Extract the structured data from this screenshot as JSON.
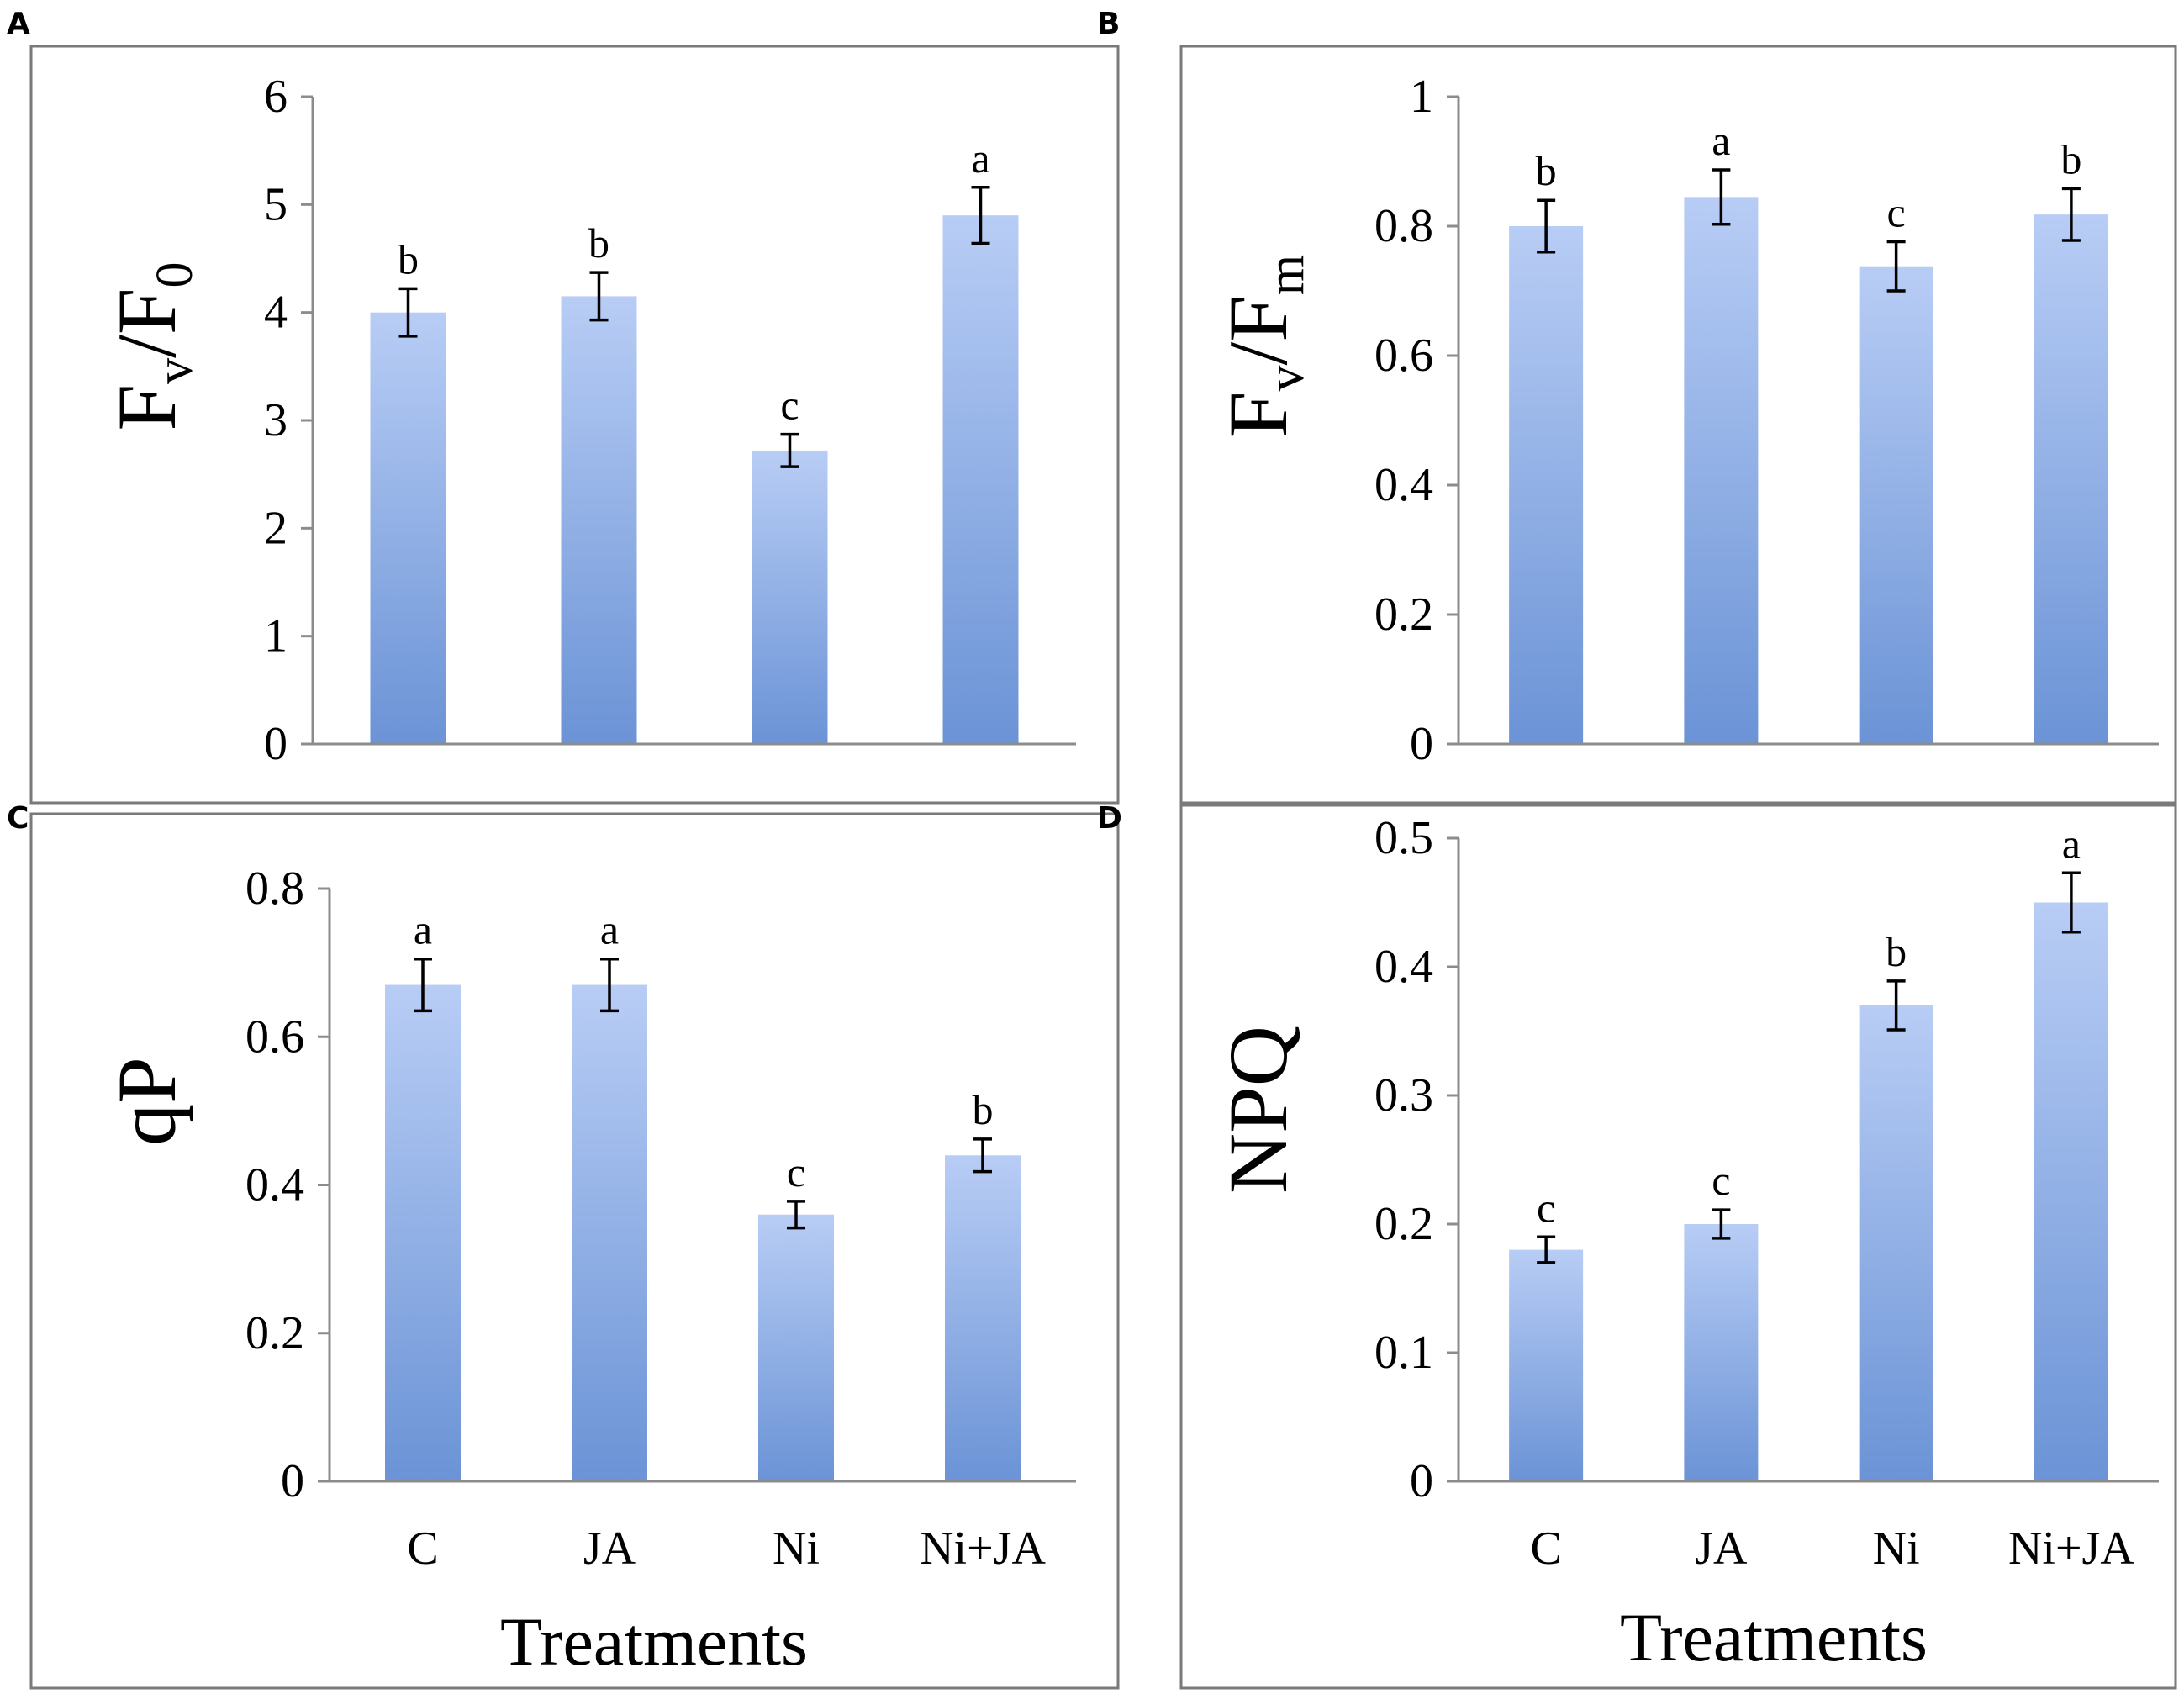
{
  "chart_data": [
    {
      "type": "bar",
      "panel": "A",
      "categories": [
        "C",
        "JA",
        "Ni",
        "Ni+JA"
      ],
      "series": [
        {
          "name": "Fv/F0",
          "values": [
            4.0,
            4.15,
            2.72,
            4.9
          ],
          "errors": [
            0.22,
            0.22,
            0.15,
            0.26
          ]
        }
      ],
      "significance": [
        "b",
        "b",
        "c",
        "a"
      ],
      "ylabel": {
        "main": "F",
        "sub1": "v",
        "mid": "/F",
        "sub2": "0"
      },
      "xlabel": "",
      "ylim": [
        0,
        6
      ],
      "yticks": [
        "0",
        "1",
        "2",
        "3",
        "4",
        "5",
        "6"
      ],
      "show_category_labels": false
    },
    {
      "type": "bar",
      "panel": "B",
      "categories": [
        "C",
        "JA",
        "Ni",
        "Ni+JA"
      ],
      "series": [
        {
          "name": "Fv/Fm",
          "values": [
            0.8,
            0.845,
            0.738,
            0.818
          ],
          "errors": [
            0.04,
            0.042,
            0.038,
            0.04
          ]
        }
      ],
      "significance": [
        "b",
        "a",
        "c",
        "b"
      ],
      "ylabel": {
        "main": "F",
        "sub1": "v",
        "mid": "/F",
        "sub2": "m"
      },
      "xlabel": "",
      "ylim": [
        0,
        1
      ],
      "yticks": [
        "0",
        "0.2",
        "0.4",
        "0.6",
        "0.8",
        "1"
      ],
      "show_category_labels": false
    },
    {
      "type": "bar",
      "panel": "C",
      "categories": [
        "C",
        "JA",
        "Ni",
        "Ni+JA"
      ],
      "series": [
        {
          "name": "qP",
          "values": [
            0.67,
            0.67,
            0.36,
            0.44
          ],
          "errors": [
            0.035,
            0.035,
            0.018,
            0.022
          ]
        }
      ],
      "significance": [
        "a",
        "a",
        "c",
        "b"
      ],
      "ylabel": {
        "main": "qP",
        "sub1": "",
        "mid": "",
        "sub2": ""
      },
      "xlabel": "Treatments",
      "ylim": [
        0,
        0.8
      ],
      "yticks": [
        "0",
        "0.2",
        "0.4",
        "0.6",
        "0.8"
      ],
      "show_category_labels": true
    },
    {
      "type": "bar",
      "panel": "D",
      "categories": [
        "C",
        "JA",
        "Ni",
        "Ni+JA"
      ],
      "series": [
        {
          "name": "NPQ",
          "values": [
            0.18,
            0.2,
            0.37,
            0.45
          ],
          "errors": [
            0.01,
            0.011,
            0.019,
            0.023
          ]
        }
      ],
      "significance": [
        "c",
        "c",
        "b",
        "a"
      ],
      "ylabel": {
        "main": "NPQ",
        "sub1": "",
        "mid": "",
        "sub2": ""
      },
      "xlabel": "Treatments",
      "ylim": [
        0,
        0.5
      ],
      "yticks": [
        "0",
        "0.1",
        "0.2",
        "0.3",
        "0.4",
        "0.5"
      ],
      "show_category_labels": true
    }
  ],
  "colors": {
    "bar_top": "#b8cdf5",
    "bar_bottom": "#6b93d6",
    "frame": "#7a7a7a",
    "axis": "#8c8c8c"
  }
}
